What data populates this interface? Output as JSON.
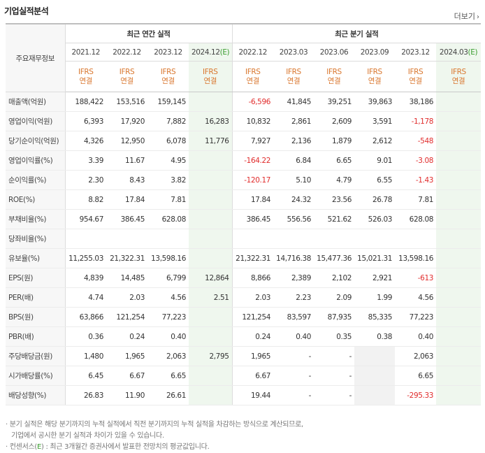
{
  "section_title": "기업실적분석",
  "more_link": "더보기",
  "more_arrow": "›",
  "header": {
    "corner": "주요재무정보",
    "annual_title": "최근 연간 실적",
    "quarterly_title": "최근 분기 실적",
    "annual_periods": [
      {
        "period": "2021.12",
        "estimate": false
      },
      {
        "period": "2022.12",
        "estimate": false
      },
      {
        "period": "2023.12",
        "estimate": false
      },
      {
        "period": "2024.12(E)",
        "estimate": true
      }
    ],
    "quarterly_periods": [
      {
        "period": "2022.12",
        "estimate": false
      },
      {
        "period": "2023.03",
        "estimate": false
      },
      {
        "period": "2023.06",
        "estimate": false
      },
      {
        "period": "2023.09",
        "estimate": false
      },
      {
        "period": "2023.12",
        "estimate": false
      },
      {
        "period": "2024.03(E)",
        "estimate": true
      }
    ],
    "standard_line1": "IFRS",
    "standard_line2": "연결"
  },
  "rows": [
    {
      "label": "매출액(억원)",
      "values": [
        "188,422",
        "153,516",
        "159,145",
        "",
        "-6,596",
        "41,845",
        "39,251",
        "39,863",
        "38,186",
        ""
      ]
    },
    {
      "label": "영업이익(억원)",
      "values": [
        "6,393",
        "17,920",
        "7,882",
        "16,283",
        "10,832",
        "2,861",
        "2,609",
        "3,591",
        "-1,178",
        ""
      ]
    },
    {
      "label": "당기순이익(억원)",
      "values": [
        "4,326",
        "12,950",
        "6,078",
        "11,776",
        "7,927",
        "2,136",
        "1,879",
        "2,612",
        "-548",
        ""
      ]
    },
    {
      "label": "영업이익률(%)",
      "group_start": true,
      "values": [
        "3.39",
        "11.67",
        "4.95",
        "",
        "-164.22",
        "6.84",
        "6.65",
        "9.01",
        "-3.08",
        ""
      ]
    },
    {
      "label": "순이익률(%)",
      "values": [
        "2.30",
        "8.43",
        "3.82",
        "",
        "-120.17",
        "5.10",
        "4.79",
        "6.55",
        "-1.43",
        ""
      ]
    },
    {
      "label": "ROE(%)",
      "values": [
        "8.82",
        "17.84",
        "7.81",
        "",
        "17.84",
        "24.32",
        "23.56",
        "26.78",
        "7.81",
        ""
      ]
    },
    {
      "label": "부채비율(%)",
      "group_start": true,
      "values": [
        "954.67",
        "386.45",
        "628.08",
        "",
        "386.45",
        "556.56",
        "521.62",
        "526.03",
        "628.08",
        ""
      ]
    },
    {
      "label": "당좌비율(%)",
      "values": [
        "",
        "",
        "",
        "",
        "",
        "",
        "",
        "",
        "",
        ""
      ]
    },
    {
      "label": "유보율(%)",
      "values": [
        "11,255.03",
        "21,322.31",
        "13,598.16",
        "",
        "21,322.31",
        "14,716.38",
        "15,477.36",
        "15,021.31",
        "13,598.16",
        ""
      ]
    },
    {
      "label": "EPS(원)",
      "group_start": true,
      "values": [
        "4,839",
        "14,485",
        "6,799",
        "12,864",
        "8,866",
        "2,389",
        "2,102",
        "2,921",
        "-613",
        ""
      ]
    },
    {
      "label": "PER(배)",
      "values": [
        "4.74",
        "2.03",
        "4.56",
        "2.51",
        "2.03",
        "2.23",
        "2.09",
        "1.99",
        "4.56",
        ""
      ]
    },
    {
      "label": "BPS(원)",
      "values": [
        "63,866",
        "121,254",
        "77,223",
        "",
        "121,254",
        "83,597",
        "87,935",
        "85,335",
        "77,223",
        ""
      ]
    },
    {
      "label": "PBR(배)",
      "values": [
        "0.36",
        "0.24",
        "0.40",
        "",
        "0.24",
        "0.40",
        "0.35",
        "0.38",
        "0.40",
        ""
      ]
    },
    {
      "label": "주당배당금(원)",
      "group_start": true,
      "values": [
        "1,480",
        "1,965",
        "2,063",
        "2,795",
        "1,965",
        "-",
        "-",
        "",
        "2,063",
        ""
      ]
    },
    {
      "label": "시가배당률(%)",
      "values": [
        "6.45",
        "6.67",
        "6.65",
        "",
        "6.67",
        "-",
        "-",
        "",
        "6.65",
        ""
      ]
    },
    {
      "label": "배당성향(%)",
      "values": [
        "26.83",
        "11.90",
        "26.61",
        "",
        "19.44",
        "-",
        "-",
        "",
        "-295.33",
        ""
      ]
    }
  ],
  "notes": [
    {
      "prefix": "· ",
      "text": "분기 실적은 해당 분기까지의 누적 실적에서 직전 분기까지의 누적 실적을 차감하는 방식으로 계산되므로,"
    },
    {
      "prefix": "  ",
      "text": "기업에서 공시한 분기 실적과 차이가 있을 수 있습니다."
    },
    {
      "prefix": "· ",
      "text_before": "컨센서스(",
      "e_mark": "E",
      "text_after": ") : 최근 3개월간 증권사에서 발표한 전망치의 평균값입니다."
    }
  ],
  "colors": {
    "ifrs_label": "#d9762d",
    "estimate_label": "#3a9d2f",
    "estimate_column_bg": "#eff7ee",
    "negative_value": "#e12c2c",
    "row_label_bg": "#f7f7f7"
  }
}
